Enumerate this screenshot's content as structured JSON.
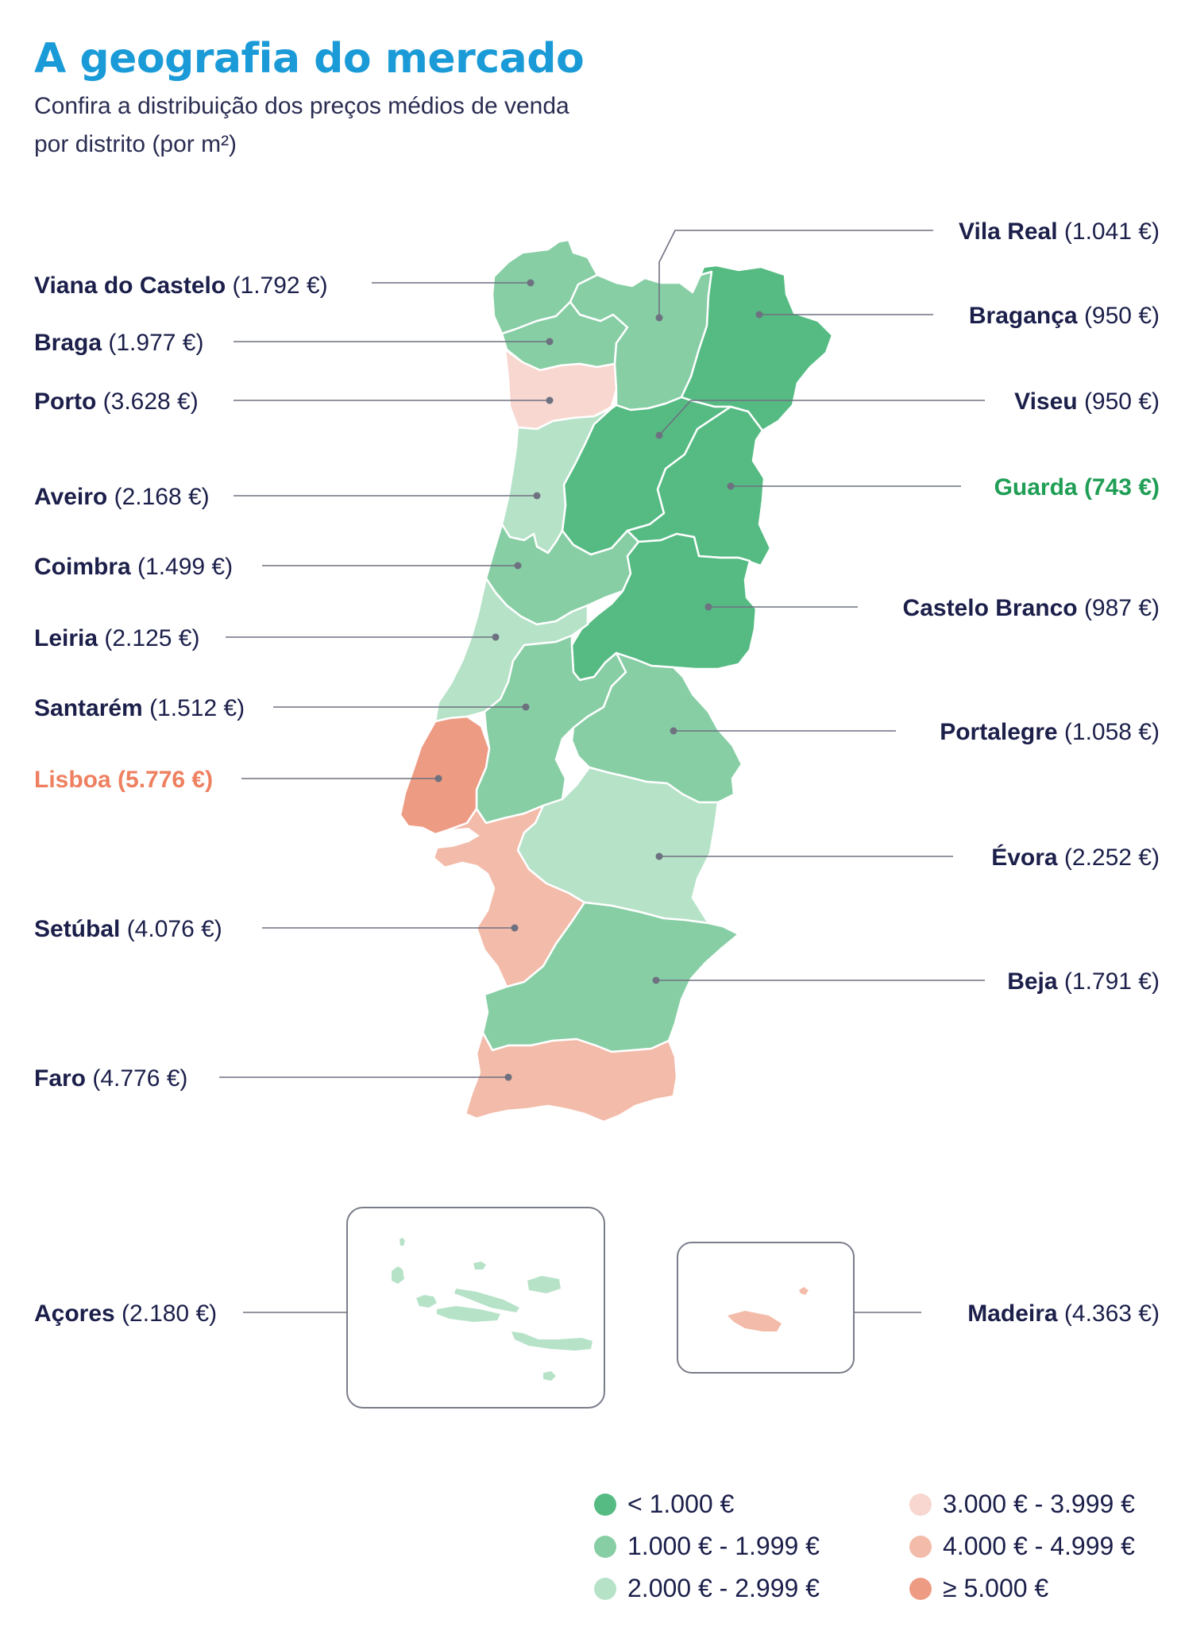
{
  "title": "A geografia do mercado",
  "subtitle": "Confira a distribuição dos preços médios de venda por distrito (por m²)",
  "colors": {
    "lt1000": "#55bb83",
    "r1000_1999": "#87cea5",
    "r2000_2999": "#b6e2c8",
    "r3000_3999": "#f7d7cf",
    "r4000_4999": "#f3bba9",
    "ge5000": "#ee9b84",
    "highlight_low": "#1f9e55",
    "highlight_high": "#ee8060"
  },
  "districts": [
    {
      "name": "Vila Real",
      "price": "(1.041 €)",
      "value": 1041,
      "range": "1.000 € - 1.999 €"
    },
    {
      "name": "Viana do Castelo",
      "price": "(1.792 €)",
      "value": 1792,
      "range": "1.000 € - 1.999 €"
    },
    {
      "name": "Bragança",
      "price": "(950 €)",
      "value": 950,
      "range": "< 1.000 €"
    },
    {
      "name": "Braga",
      "price": "(1.977 €)",
      "value": 1977,
      "range": "1.000 € - 1.999 €"
    },
    {
      "name": "Porto",
      "price": "(3.628 €)",
      "value": 3628,
      "range": "3.000 € - 3.999 €"
    },
    {
      "name": "Viseu",
      "price": "(950 €)",
      "value": 950,
      "range": "< 1.000 €"
    },
    {
      "name": "Aveiro",
      "price": "(2.168 €)",
      "value": 2168,
      "range": "2.000 € - 2.999 €"
    },
    {
      "name": "Guarda",
      "price": "(743 €)",
      "value": 743,
      "range": "< 1.000 €",
      "highlight": "lowest"
    },
    {
      "name": "Coimbra",
      "price": "(1.499 €)",
      "value": 1499,
      "range": "1.000 € - 1.999 €"
    },
    {
      "name": "Castelo Branco",
      "price": "(987 €)",
      "value": 987,
      "range": "< 1.000 €"
    },
    {
      "name": "Leiria",
      "price": "(2.125 €)",
      "value": 2125,
      "range": "2.000 € - 2.999 €"
    },
    {
      "name": "Santarém",
      "price": "(1.512 €)",
      "value": 1512,
      "range": "1.000 € - 1.999 €"
    },
    {
      "name": "Portalegre",
      "price": "(1.058 €)",
      "value": 1058,
      "range": "1.000 € - 1.999 €"
    },
    {
      "name": "Lisboa",
      "price": "(5.776 €)",
      "value": 5776,
      "range": "≥ 5.000 €",
      "highlight": "highest"
    },
    {
      "name": "Évora",
      "price": "(2.252 €)",
      "value": 2252,
      "range": "2.000 € - 2.999 €"
    },
    {
      "name": "Setúbal",
      "price": "(4.076 €)",
      "value": 4076,
      "range": "4.000 € - 4.999 €"
    },
    {
      "name": "Beja",
      "price": "(1.791 €)",
      "value": 1791,
      "range": "1.000 € - 1.999 €"
    },
    {
      "name": "Faro",
      "price": "(4.776 €)",
      "value": 4776,
      "range": "4.000 € - 4.999 €"
    },
    {
      "name": "Açores",
      "price": "(2.180 €)",
      "value": 2180,
      "range": "2.000 € - 2.999 €"
    },
    {
      "name": "Madeira",
      "price": "(4.363 €)",
      "value": 4363,
      "range": "4.000 € - 4.999 €"
    }
  ],
  "legend": [
    {
      "label": "< 1.000 €",
      "color": "#55bb83"
    },
    {
      "label": "1.000 € - 1.999 €",
      "color": "#87cea5"
    },
    {
      "label": "2.000 € - 2.999 €",
      "color": "#b6e2c8"
    },
    {
      "label": "3.000 € - 3.999 €",
      "color": "#f7d7cf"
    },
    {
      "label": "4.000 € - 4.999 €",
      "color": "#f3bba9"
    },
    {
      "label": "≥ 5.000 €",
      "color": "#ee9b84"
    }
  ]
}
